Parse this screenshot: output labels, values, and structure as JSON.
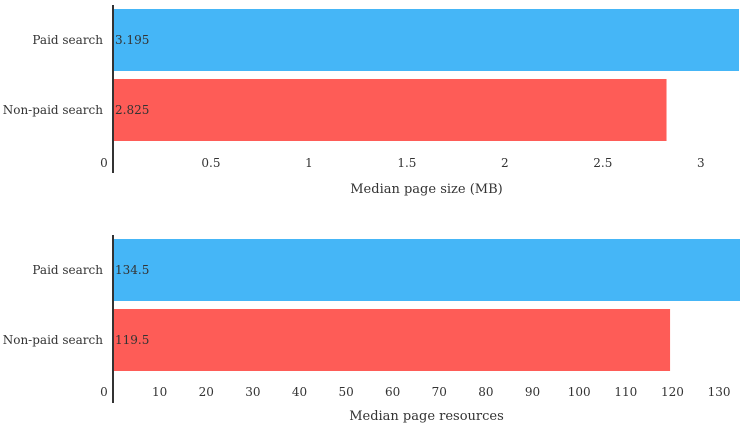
{
  "chart_data": [
    {
      "type": "bar",
      "orientation": "horizontal",
      "categories": [
        "Paid search",
        "Non-paid search"
      ],
      "values": [
        3.195,
        2.825
      ],
      "value_labels": [
        "3.195",
        "2.825"
      ],
      "colors": [
        "#45b6f7",
        "#fe5c57"
      ],
      "xlabel": "Median page size (MB)",
      "xlim": [
        0,
        3.2
      ],
      "ticks": [
        0,
        0.5,
        1,
        1.5,
        2,
        2.5,
        3
      ],
      "tick_labels": [
        "0",
        "0.5",
        "1",
        "1.5",
        "2",
        "2.5",
        "3"
      ],
      "grid": false,
      "legend": "none"
    },
    {
      "type": "bar",
      "orientation": "horizontal",
      "categories": [
        "Paid search",
        "Non-paid search"
      ],
      "values": [
        134.5,
        119.5
      ],
      "value_labels": [
        "134.5",
        "119.5"
      ],
      "colors": [
        "#45b6f7",
        "#fe5c57"
      ],
      "xlabel": "Median page resources",
      "xlim": [
        0,
        134.5
      ],
      "ticks": [
        0,
        10,
        20,
        30,
        40,
        50,
        60,
        70,
        80,
        90,
        100,
        110,
        120,
        130
      ],
      "tick_labels": [
        "0",
        "10",
        "20",
        "30",
        "40",
        "50",
        "60",
        "70",
        "80",
        "90",
        "100",
        "110",
        "120",
        "130"
      ],
      "grid": false,
      "legend": "none"
    }
  ]
}
